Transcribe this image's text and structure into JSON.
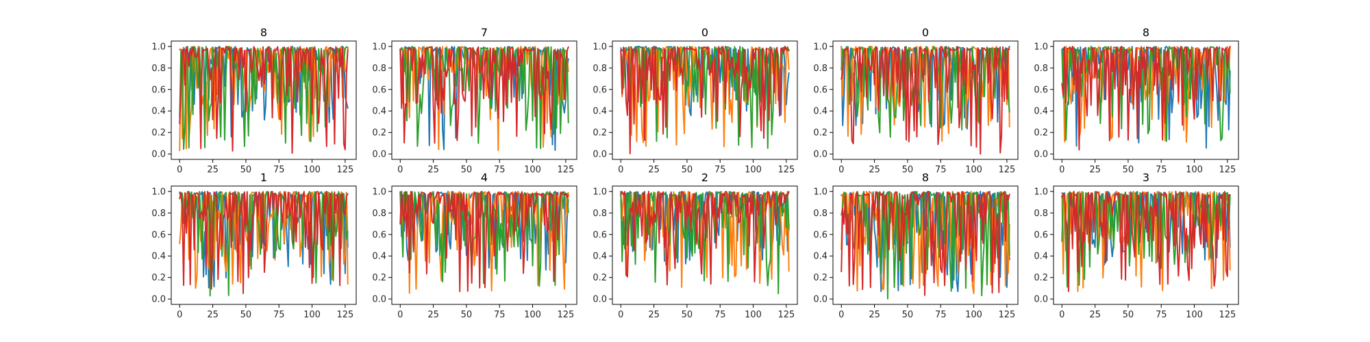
{
  "colors": [
    "#1f77b4",
    "#ff7f0e",
    "#2ca02c",
    "#d62728"
  ],
  "chart_data": {
    "type": "line",
    "layout": "grid of small multiples, 2 rows x 5 columns",
    "x_ticks": [
      0,
      25,
      50,
      75,
      100,
      125
    ],
    "y_ticks": [
      0.0,
      0.2,
      0.4,
      0.6,
      0.8,
      1.0
    ],
    "y_tick_labels": [
      "0.0",
      "0.2",
      "0.4",
      "0.6",
      "0.8",
      "1.0"
    ],
    "xlim": [
      -6.35,
      133.35
    ],
    "ylim": [
      -0.05,
      1.05
    ],
    "x_range": [
      0,
      127
    ],
    "series_count": 4,
    "grid": false,
    "legend": "none",
    "panels": [
      {
        "title": "8",
        "seed": 11,
        "depth": [
          0.15,
          0.0,
          0.0,
          0.0
        ]
      },
      {
        "title": "7",
        "seed": 23,
        "depth": [
          0.0,
          0.0,
          0.05,
          0.1
        ]
      },
      {
        "title": "0",
        "seed": 37,
        "depth": [
          0.35,
          0.05,
          0.0,
          0.0
        ]
      },
      {
        "title": "0",
        "seed": 41,
        "depth": [
          0.2,
          0.1,
          0.15,
          0.0
        ]
      },
      {
        "title": "8",
        "seed": 53,
        "depth": [
          0.05,
          0.1,
          0.1,
          0.0
        ]
      },
      {
        "title": "1",
        "seed": 61,
        "depth": [
          0.05,
          0.05,
          0.0,
          0.05
        ]
      },
      {
        "title": "4",
        "seed": 73,
        "depth": [
          0.25,
          0.05,
          0.1,
          0.0
        ]
      },
      {
        "title": "2",
        "seed": 89,
        "depth": [
          0.3,
          0.1,
          0.05,
          0.1
        ]
      },
      {
        "title": "8",
        "seed": 97,
        "depth": [
          0.05,
          0.05,
          0.0,
          0.0
        ]
      },
      {
        "title": "3",
        "seed": 103,
        "depth": [
          0.3,
          0.05,
          0.1,
          0.0
        ]
      }
    ]
  }
}
